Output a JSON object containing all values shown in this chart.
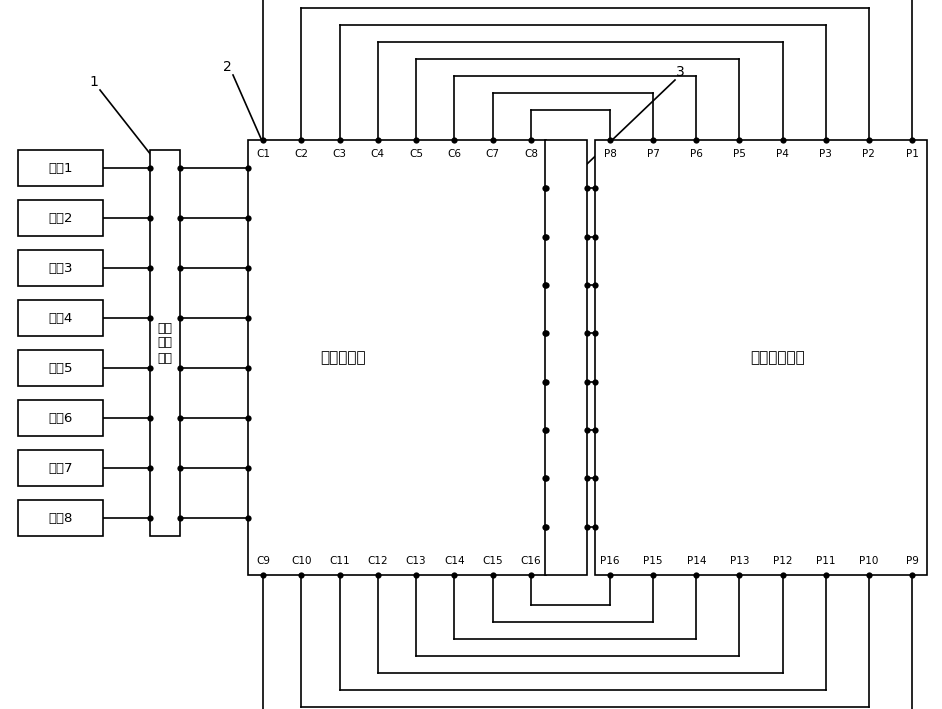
{
  "fig_width": 9.42,
  "fig_height": 7.09,
  "bg_color": "#ffffff",
  "line_color": "#000000",
  "probe_labels": [
    "探头1",
    "探头2",
    "探头3",
    "探头4",
    "探头5",
    "探头6",
    "探头7",
    "探头8"
  ],
  "signal_cond_label": "信号\n调理\n单元",
  "delay_unit_label": "精延时单元",
  "process_unit_label": "信号处理单元",
  "label1": "1",
  "label2": "2",
  "label3": "3",
  "top_c_labels": [
    "C1",
    "C2",
    "C3",
    "C4",
    "C5",
    "C6",
    "C7",
    "C8"
  ],
  "top_p_labels": [
    "P8",
    "P7",
    "P6",
    "P5",
    "P4",
    "P3",
    "P2",
    "P1"
  ],
  "bot_c_labels": [
    "C9",
    "C10",
    "C11",
    "C12",
    "C13",
    "C14",
    "C15",
    "C16"
  ],
  "bot_p_labels": [
    "P16",
    "P15",
    "P14",
    "P13",
    "P12",
    "P11",
    "P10",
    "P9"
  ]
}
